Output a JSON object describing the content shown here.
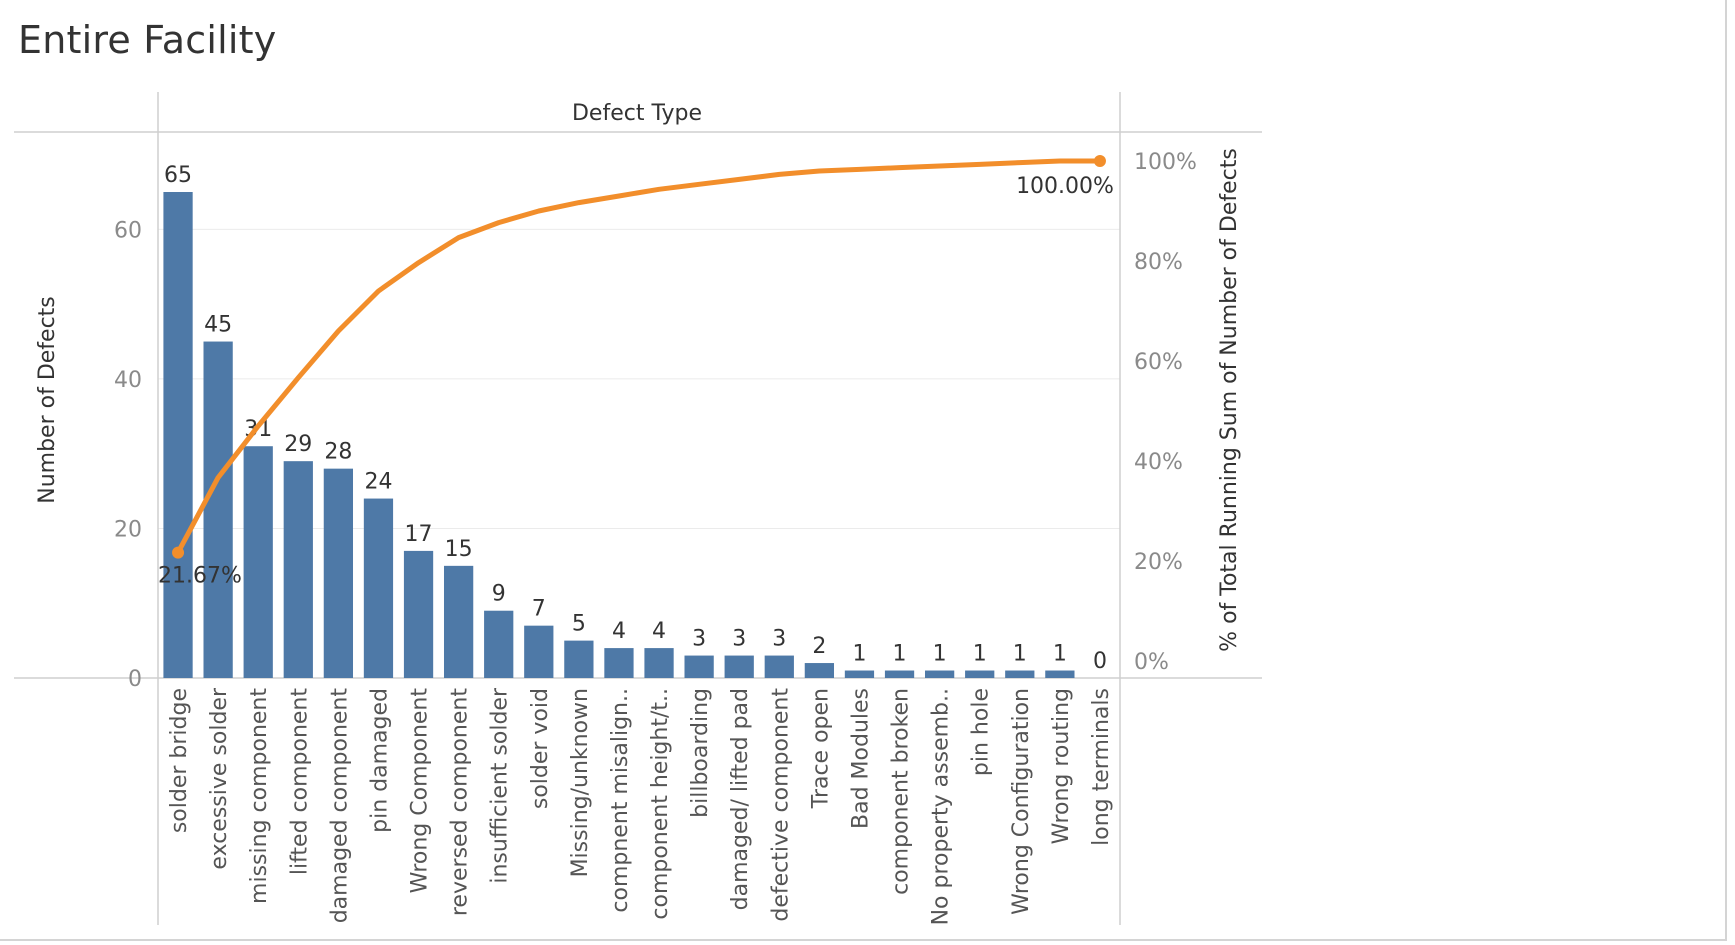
{
  "title": "Entire Facility",
  "colors": {
    "bar": "#4e79a7",
    "line": "#f28e2b",
    "grid": "#ebebeb",
    "axis": "#cfcfcf",
    "tick_text": "#8a8a8a",
    "label_text": "#333333"
  },
  "chart_data": {
    "type": "bar",
    "combo_line": "line",
    "header": "Defect Type",
    "ylabel": "Number of Defects",
    "y2label": "% of Total Running Sum of Number of Defects",
    "ylim": [
      0,
      70
    ],
    "y_ticks": [
      "0",
      "20",
      "40",
      "60"
    ],
    "y2lim": [
      0,
      100
    ],
    "y2_ticks": [
      "0%",
      "20%",
      "40%",
      "60%",
      "80%",
      "100%"
    ],
    "categories": [
      "solder bridge",
      "excessive solder",
      "missing component",
      "lifted component",
      "damaged component",
      "pin damaged",
      "Wrong Component",
      "reversed component",
      "insufficient solder",
      "solder void",
      "Missing/unknown",
      "compnent misalign..",
      "component height/t..",
      "billboarding",
      "damaged/ lifted pad",
      "defective component",
      "Trace open",
      "Bad Modules",
      "component broken",
      "No property assemb..",
      "pin hole",
      "Wrong Configuration",
      "Wrong routing",
      "long terminals"
    ],
    "values": [
      65,
      45,
      31,
      29,
      28,
      24,
      17,
      15,
      9,
      7,
      5,
      4,
      4,
      3,
      3,
      3,
      2,
      1,
      1,
      1,
      1,
      1,
      1,
      0
    ],
    "value_labels": [
      "65",
      "45",
      "31",
      "29",
      "28",
      "24",
      "17",
      "15",
      "9",
      "7",
      "5",
      "4",
      "4",
      "3",
      "3",
      "3",
      "2",
      "1",
      "1",
      "1",
      "1",
      "1",
      "1",
      "0"
    ],
    "running_pct": [
      21.67,
      36.67,
      47.0,
      56.67,
      66.0,
      74.0,
      79.67,
      84.67,
      87.67,
      90.0,
      91.67,
      93.0,
      94.33,
      95.33,
      96.33,
      97.33,
      98.0,
      98.33,
      98.67,
      99.0,
      99.33,
      99.67,
      100.0,
      100.0
    ],
    "line_labels": {
      "first": "21.67%",
      "last": "100.00%"
    },
    "grid": true,
    "legend": "none"
  }
}
